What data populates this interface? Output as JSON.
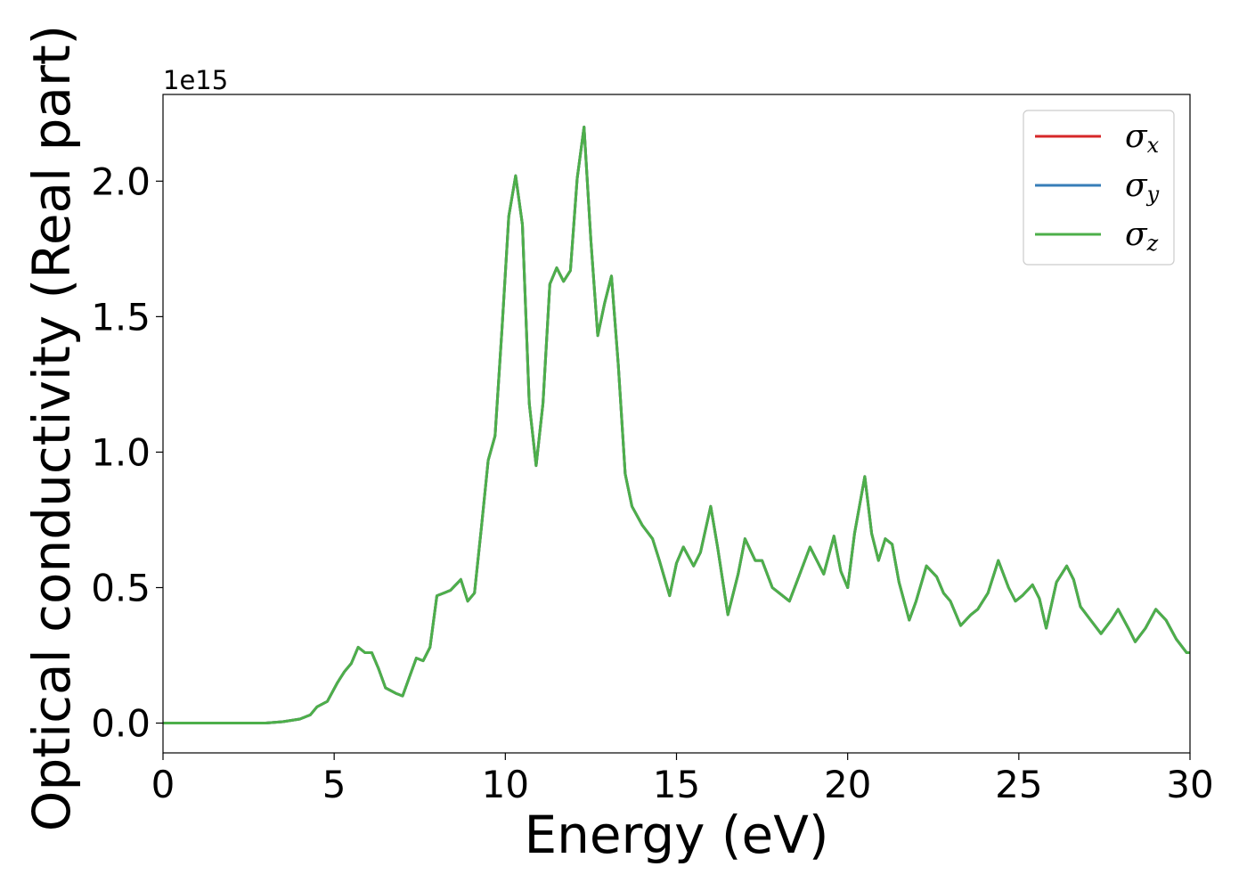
{
  "chart_data": {
    "type": "line",
    "xlabel": "Energy (eV)",
    "ylabel": "Optical conductivity (Real part)",
    "y_offset_text": "1e15",
    "xlim": [
      0,
      30
    ],
    "ylim": [
      -0.11,
      2.32
    ],
    "y_scale_factor": 1000000000000000.0,
    "grid": false,
    "legend_position": "upper-right",
    "x_ticks": [
      0,
      5,
      10,
      15,
      20,
      25,
      30
    ],
    "x_tick_labels": [
      "0",
      "5",
      "10",
      "15",
      "20",
      "25",
      "30"
    ],
    "y_ticks": [
      0.0,
      0.5,
      1.0,
      1.5,
      2.0
    ],
    "y_tick_labels": [
      "0.0",
      "0.5",
      "1.0",
      "1.5",
      "2.0"
    ],
    "x": [
      0,
      1,
      2,
      3,
      3.5,
      4.0,
      4.3,
      4.5,
      4.8,
      5.1,
      5.3,
      5.5,
      5.7,
      5.9,
      6.1,
      6.3,
      6.5,
      6.8,
      7.0,
      7.2,
      7.4,
      7.6,
      7.8,
      8.0,
      8.2,
      8.4,
      8.7,
      8.9,
      9.1,
      9.3,
      9.5,
      9.7,
      9.9,
      10.1,
      10.3,
      10.5,
      10.7,
      10.9,
      11.1,
      11.3,
      11.5,
      11.7,
      11.9,
      12.1,
      12.3,
      12.5,
      12.7,
      12.9,
      13.1,
      13.3,
      13.5,
      13.7,
      14.0,
      14.3,
      14.5,
      14.8,
      15.0,
      15.2,
      15.5,
      15.7,
      16.0,
      16.2,
      16.5,
      16.8,
      17.0,
      17.3,
      17.5,
      17.8,
      18.0,
      18.3,
      18.6,
      18.9,
      19.1,
      19.3,
      19.6,
      19.8,
      20.0,
      20.2,
      20.5,
      20.7,
      20.9,
      21.1,
      21.3,
      21.5,
      21.8,
      22.0,
      22.3,
      22.6,
      22.8,
      23.0,
      23.3,
      23.6,
      23.8,
      24.1,
      24.4,
      24.7,
      24.9,
      25.1,
      25.4,
      25.6,
      25.8,
      26.1,
      26.4,
      26.6,
      26.8,
      27.1,
      27.4,
      27.7,
      27.9,
      28.2,
      28.4,
      28.7,
      29.0,
      29.3,
      29.6,
      29.9,
      30.0
    ],
    "series": [
      {
        "name": "σx",
        "symbol": "σ",
        "sub": "x",
        "color": "#d62728",
        "values": [
          0.0,
          0.0,
          0.0,
          0.0,
          0.005,
          0.015,
          0.03,
          0.06,
          0.08,
          0.15,
          0.19,
          0.22,
          0.28,
          0.26,
          0.26,
          0.2,
          0.13,
          0.11,
          0.1,
          0.17,
          0.24,
          0.23,
          0.28,
          0.47,
          0.48,
          0.49,
          0.53,
          0.45,
          0.48,
          0.72,
          0.97,
          1.06,
          1.45,
          1.87,
          2.02,
          1.84,
          1.18,
          0.95,
          1.18,
          1.62,
          1.68,
          1.63,
          1.67,
          2.01,
          2.2,
          1.78,
          1.43,
          1.55,
          1.65,
          1.32,
          0.92,
          0.8,
          0.73,
          0.68,
          0.6,
          0.47,
          0.59,
          0.65,
          0.58,
          0.63,
          0.8,
          0.65,
          0.4,
          0.55,
          0.68,
          0.6,
          0.6,
          0.5,
          0.48,
          0.45,
          0.55,
          0.65,
          0.6,
          0.55,
          0.69,
          0.56,
          0.5,
          0.7,
          0.91,
          0.7,
          0.6,
          0.68,
          0.66,
          0.52,
          0.38,
          0.45,
          0.58,
          0.54,
          0.48,
          0.45,
          0.36,
          0.4,
          0.42,
          0.48,
          0.6,
          0.5,
          0.45,
          0.47,
          0.51,
          0.46,
          0.35,
          0.52,
          0.58,
          0.53,
          0.43,
          0.38,
          0.33,
          0.38,
          0.42,
          0.35,
          0.3,
          0.35,
          0.42,
          0.38,
          0.31,
          0.26,
          0.26
        ]
      },
      {
        "name": "σy",
        "symbol": "σ",
        "sub": "y",
        "color": "#377eb8",
        "values": [
          0.0,
          0.0,
          0.0,
          0.0,
          0.005,
          0.015,
          0.03,
          0.06,
          0.08,
          0.15,
          0.19,
          0.22,
          0.28,
          0.26,
          0.26,
          0.2,
          0.13,
          0.11,
          0.1,
          0.17,
          0.24,
          0.23,
          0.28,
          0.47,
          0.48,
          0.49,
          0.53,
          0.45,
          0.48,
          0.72,
          0.97,
          1.06,
          1.45,
          1.87,
          2.02,
          1.84,
          1.18,
          0.95,
          1.18,
          1.62,
          1.68,
          1.63,
          1.67,
          2.01,
          2.2,
          1.78,
          1.43,
          1.55,
          1.65,
          1.32,
          0.92,
          0.8,
          0.73,
          0.68,
          0.6,
          0.47,
          0.59,
          0.65,
          0.58,
          0.63,
          0.8,
          0.65,
          0.4,
          0.55,
          0.68,
          0.6,
          0.6,
          0.5,
          0.48,
          0.45,
          0.55,
          0.65,
          0.6,
          0.55,
          0.69,
          0.56,
          0.5,
          0.7,
          0.91,
          0.7,
          0.6,
          0.68,
          0.66,
          0.52,
          0.38,
          0.45,
          0.58,
          0.54,
          0.48,
          0.45,
          0.36,
          0.4,
          0.42,
          0.48,
          0.6,
          0.5,
          0.45,
          0.47,
          0.51,
          0.46,
          0.35,
          0.52,
          0.58,
          0.53,
          0.43,
          0.38,
          0.33,
          0.38,
          0.42,
          0.35,
          0.3,
          0.35,
          0.42,
          0.38,
          0.31,
          0.26,
          0.26
        ]
      },
      {
        "name": "σz",
        "symbol": "σ",
        "sub": "z",
        "color": "#4daf4a",
        "values": [
          0.0,
          0.0,
          0.0,
          0.0,
          0.005,
          0.015,
          0.03,
          0.06,
          0.08,
          0.15,
          0.19,
          0.22,
          0.28,
          0.26,
          0.26,
          0.2,
          0.13,
          0.11,
          0.1,
          0.17,
          0.24,
          0.23,
          0.28,
          0.47,
          0.48,
          0.49,
          0.53,
          0.45,
          0.48,
          0.72,
          0.97,
          1.06,
          1.45,
          1.87,
          2.02,
          1.84,
          1.18,
          0.95,
          1.18,
          1.62,
          1.68,
          1.63,
          1.67,
          2.01,
          2.2,
          1.78,
          1.43,
          1.55,
          1.65,
          1.32,
          0.92,
          0.8,
          0.73,
          0.68,
          0.6,
          0.47,
          0.59,
          0.65,
          0.58,
          0.63,
          0.8,
          0.65,
          0.4,
          0.55,
          0.68,
          0.6,
          0.6,
          0.5,
          0.48,
          0.45,
          0.55,
          0.65,
          0.6,
          0.55,
          0.69,
          0.56,
          0.5,
          0.7,
          0.91,
          0.7,
          0.6,
          0.68,
          0.66,
          0.52,
          0.38,
          0.45,
          0.58,
          0.54,
          0.48,
          0.45,
          0.36,
          0.4,
          0.42,
          0.48,
          0.6,
          0.5,
          0.45,
          0.47,
          0.51,
          0.46,
          0.35,
          0.52,
          0.58,
          0.53,
          0.43,
          0.38,
          0.33,
          0.38,
          0.42,
          0.35,
          0.3,
          0.35,
          0.42,
          0.38,
          0.31,
          0.26,
          0.26
        ]
      }
    ]
  }
}
